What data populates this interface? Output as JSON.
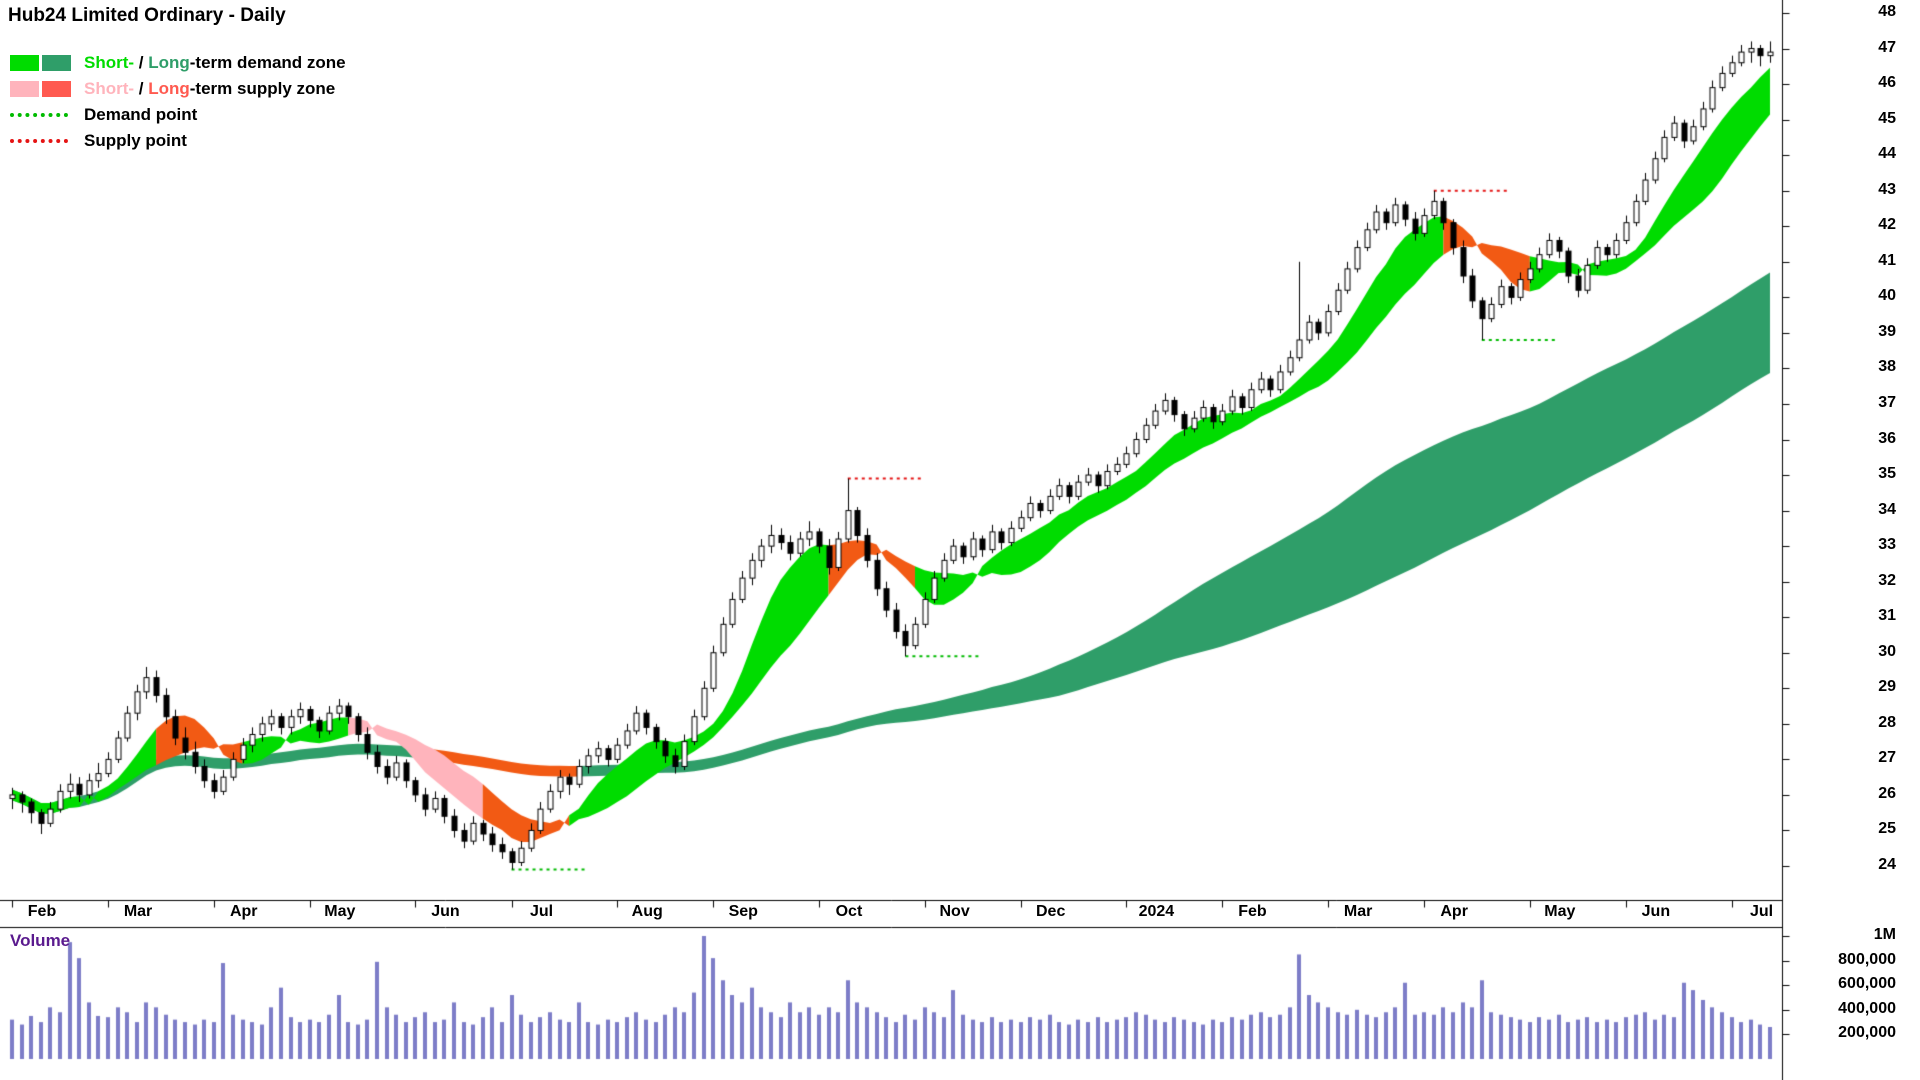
{
  "window": {
    "title": "Hub24 Limited Ordinary - Daily"
  },
  "legend": {
    "row1": [
      "Short-",
      " / ",
      "Long",
      "-term demand zone"
    ],
    "row2": [
      "Short-",
      " / ",
      "Long",
      "-term supply zone"
    ],
    "row3": "Demand point",
    "row4": "Supply point"
  },
  "volume_panel": {
    "label": "Volume"
  },
  "colors": {
    "short_demand": "#00dc00",
    "long_demand": "#2f9e69",
    "short_supply": "#ffb4bc",
    "long_supply": "#ff5a50",
    "supply_orange": "#f25a14",
    "demand_point": "#00bb00",
    "supply_point": "#e51414",
    "candle_up_fill": "#ffffff",
    "candle_down_fill": "#000000",
    "candle_stroke": "#000000",
    "volume_bar": "#7d7dc8",
    "volume_label": "#5a1a8e",
    "axis_line": "#000000",
    "text": "#000000",
    "background": "#ffffff"
  },
  "chart_data": {
    "type": "candlestick",
    "title": "Hub24 Limited Ordinary - Daily",
    "timeframe": "Daily",
    "y_axis": {
      "min": 24,
      "max": 48,
      "tick_interval": 1
    },
    "x_ticks": {
      "indices": [
        0,
        10,
        21,
        31,
        42,
        52,
        63,
        73,
        84,
        95,
        105,
        116,
        126,
        137,
        147,
        158,
        168,
        179
      ],
      "labels": [
        "Feb",
        "Mar",
        "Apr",
        "May",
        "Jun",
        "Jul",
        "Aug",
        "Sep",
        "Oct",
        "Nov",
        "Dec",
        "2024",
        "Feb",
        "Mar",
        "Apr",
        "May",
        "Jun",
        "Jul"
      ]
    },
    "candles": [
      [
        25.9,
        26.2,
        25.6,
        26.0
      ],
      [
        26.0,
        26.1,
        25.5,
        25.8
      ],
      [
        25.8,
        25.9,
        25.2,
        25.5
      ],
      [
        25.5,
        25.6,
        24.9,
        25.2
      ],
      [
        25.2,
        25.8,
        25.1,
        25.6
      ],
      [
        25.6,
        26.3,
        25.5,
        26.1
      ],
      [
        26.1,
        26.6,
        25.9,
        26.3
      ],
      [
        26.3,
        26.5,
        25.8,
        26.0
      ],
      [
        26.0,
        26.6,
        25.9,
        26.4
      ],
      [
        26.4,
        26.9,
        26.2,
        26.6
      ],
      [
        26.6,
        27.2,
        26.5,
        27.0
      ],
      [
        27.0,
        27.8,
        26.9,
        27.6
      ],
      [
        27.6,
        28.5,
        27.5,
        28.3
      ],
      [
        28.3,
        29.1,
        28.1,
        28.9
      ],
      [
        28.9,
        29.6,
        28.7,
        29.3
      ],
      [
        29.3,
        29.5,
        28.6,
        28.8
      ],
      [
        28.8,
        29.0,
        28.0,
        28.2
      ],
      [
        28.2,
        28.4,
        27.4,
        27.6
      ],
      [
        27.6,
        27.9,
        27.0,
        27.2
      ],
      [
        27.2,
        27.5,
        26.6,
        26.8
      ],
      [
        26.8,
        27.0,
        26.2,
        26.4
      ],
      [
        26.4,
        26.6,
        25.9,
        26.1
      ],
      [
        26.1,
        26.7,
        26.0,
        26.5
      ],
      [
        26.5,
        27.2,
        26.4,
        27.0
      ],
      [
        27.0,
        27.6,
        26.9,
        27.4
      ],
      [
        27.4,
        27.9,
        27.2,
        27.7
      ],
      [
        27.7,
        28.2,
        27.5,
        28.0
      ],
      [
        28.0,
        28.4,
        27.8,
        28.2
      ],
      [
        28.2,
        28.3,
        27.7,
        27.9
      ],
      [
        27.9,
        28.4,
        27.7,
        28.2
      ],
      [
        28.2,
        28.6,
        28.0,
        28.4
      ],
      [
        28.4,
        28.5,
        27.9,
        28.1
      ],
      [
        28.1,
        28.2,
        27.6,
        27.8
      ],
      [
        27.8,
        28.5,
        27.7,
        28.3
      ],
      [
        28.3,
        28.7,
        28.1,
        28.5
      ],
      [
        28.5,
        28.6,
        28.0,
        28.2
      ],
      [
        28.2,
        28.3,
        27.5,
        27.7
      ],
      [
        27.7,
        27.9,
        27.0,
        27.2
      ],
      [
        27.2,
        27.4,
        26.6,
        26.8
      ],
      [
        26.8,
        27.0,
        26.3,
        26.5
      ],
      [
        26.5,
        27.1,
        26.4,
        26.9
      ],
      [
        26.9,
        27.0,
        26.2,
        26.4
      ],
      [
        26.4,
        26.5,
        25.8,
        26.0
      ],
      [
        26.0,
        26.2,
        25.4,
        25.6
      ],
      [
        25.6,
        26.1,
        25.5,
        25.9
      ],
      [
        25.9,
        26.0,
        25.2,
        25.4
      ],
      [
        25.4,
        25.6,
        24.8,
        25.0
      ],
      [
        25.0,
        25.2,
        24.5,
        24.7
      ],
      [
        24.7,
        25.4,
        24.6,
        25.2
      ],
      [
        25.2,
        25.3,
        24.7,
        24.9
      ],
      [
        24.9,
        25.1,
        24.4,
        24.6
      ],
      [
        24.6,
        24.8,
        24.2,
        24.4
      ],
      [
        24.4,
        24.5,
        23.9,
        24.1
      ],
      [
        24.1,
        24.7,
        24.0,
        24.5
      ],
      [
        24.5,
        25.2,
        24.4,
        25.0
      ],
      [
        25.0,
        25.8,
        24.9,
        25.6
      ],
      [
        25.6,
        26.3,
        25.5,
        26.1
      ],
      [
        26.1,
        26.7,
        25.9,
        26.5
      ],
      [
        26.5,
        26.6,
        26.0,
        26.3
      ],
      [
        26.3,
        27.0,
        26.2,
        26.8
      ],
      [
        26.8,
        27.3,
        26.6,
        27.1
      ],
      [
        27.1,
        27.5,
        26.9,
        27.3
      ],
      [
        27.3,
        27.4,
        26.8,
        27.0
      ],
      [
        27.0,
        27.6,
        26.9,
        27.4
      ],
      [
        27.4,
        28.0,
        27.3,
        27.8
      ],
      [
        27.8,
        28.5,
        27.7,
        28.3
      ],
      [
        28.3,
        28.4,
        27.7,
        27.9
      ],
      [
        27.9,
        28.0,
        27.3,
        27.5
      ],
      [
        27.5,
        27.6,
        26.9,
        27.1
      ],
      [
        27.1,
        27.3,
        26.6,
        26.8
      ],
      [
        26.8,
        27.7,
        26.7,
        27.5
      ],
      [
        27.5,
        28.4,
        27.4,
        28.2
      ],
      [
        28.2,
        29.2,
        28.1,
        29.0
      ],
      [
        29.0,
        30.2,
        28.9,
        30.0
      ],
      [
        30.0,
        31.0,
        29.9,
        30.8
      ],
      [
        30.8,
        31.7,
        30.7,
        31.5
      ],
      [
        31.5,
        32.3,
        31.4,
        32.1
      ],
      [
        32.1,
        32.8,
        31.9,
        32.6
      ],
      [
        32.6,
        33.2,
        32.4,
        33.0
      ],
      [
        33.0,
        33.6,
        32.8,
        33.3
      ],
      [
        33.3,
        33.5,
        32.9,
        33.1
      ],
      [
        33.1,
        33.3,
        32.6,
        32.8
      ],
      [
        32.8,
        33.4,
        32.7,
        33.2
      ],
      [
        33.2,
        33.7,
        33.0,
        33.4
      ],
      [
        33.4,
        33.5,
        32.8,
        33.0
      ],
      [
        33.0,
        33.2,
        32.2,
        32.4
      ],
      [
        32.4,
        33.4,
        32.3,
        33.2
      ],
      [
        33.2,
        34.9,
        33.1,
        34.0
      ],
      [
        34.0,
        34.1,
        33.1,
        33.3
      ],
      [
        33.3,
        33.5,
        32.4,
        32.6
      ],
      [
        32.6,
        32.8,
        31.6,
        31.8
      ],
      [
        31.8,
        32.0,
        31.0,
        31.2
      ],
      [
        31.2,
        31.4,
        30.4,
        30.6
      ],
      [
        30.6,
        30.8,
        29.9,
        30.2
      ],
      [
        30.2,
        31.0,
        30.1,
        30.8
      ],
      [
        30.8,
        31.7,
        30.7,
        31.5
      ],
      [
        31.5,
        32.3,
        31.4,
        32.1
      ],
      [
        32.1,
        32.8,
        32.0,
        32.6
      ],
      [
        32.6,
        33.2,
        32.5,
        33.0
      ],
      [
        33.0,
        33.1,
        32.5,
        32.7
      ],
      [
        32.7,
        33.4,
        32.6,
        33.2
      ],
      [
        33.2,
        33.3,
        32.7,
        32.9
      ],
      [
        32.9,
        33.6,
        32.8,
        33.4
      ],
      [
        33.4,
        33.5,
        32.9,
        33.1
      ],
      [
        33.1,
        33.7,
        33.0,
        33.5
      ],
      [
        33.5,
        34.0,
        33.4,
        33.8
      ],
      [
        33.8,
        34.4,
        33.7,
        34.2
      ],
      [
        34.2,
        34.3,
        33.8,
        34.0
      ],
      [
        34.0,
        34.6,
        33.9,
        34.4
      ],
      [
        34.4,
        34.9,
        34.3,
        34.7
      ],
      [
        34.7,
        34.8,
        34.2,
        34.4
      ],
      [
        34.4,
        35.0,
        34.3,
        34.8
      ],
      [
        34.8,
        35.2,
        34.7,
        35.0
      ],
      [
        35.0,
        35.1,
        34.5,
        34.7
      ],
      [
        34.7,
        35.3,
        34.6,
        35.1
      ],
      [
        35.1,
        35.5,
        35.0,
        35.3
      ],
      [
        35.3,
        35.8,
        35.2,
        35.6
      ],
      [
        35.6,
        36.2,
        35.5,
        36.0
      ],
      [
        36.0,
        36.6,
        35.9,
        36.4
      ],
      [
        36.4,
        37.0,
        36.3,
        36.8
      ],
      [
        36.8,
        37.3,
        36.7,
        37.1
      ],
      [
        37.1,
        37.2,
        36.5,
        36.7
      ],
      [
        36.7,
        36.8,
        36.1,
        36.3
      ],
      [
        36.3,
        36.8,
        36.2,
        36.6
      ],
      [
        36.6,
        37.1,
        36.5,
        36.9
      ],
      [
        36.9,
        37.0,
        36.3,
        36.5
      ],
      [
        36.5,
        37.0,
        36.4,
        36.8
      ],
      [
        36.8,
        37.4,
        36.7,
        37.2
      ],
      [
        37.2,
        37.3,
        36.7,
        36.9
      ],
      [
        36.9,
        37.6,
        36.8,
        37.4
      ],
      [
        37.4,
        37.9,
        37.3,
        37.7
      ],
      [
        37.7,
        37.8,
        37.2,
        37.4
      ],
      [
        37.4,
        38.1,
        37.3,
        37.9
      ],
      [
        37.9,
        38.5,
        37.8,
        38.3
      ],
      [
        38.3,
        41.0,
        38.2,
        38.8
      ],
      [
        38.8,
        39.5,
        38.7,
        39.3
      ],
      [
        39.3,
        39.4,
        38.8,
        39.0
      ],
      [
        39.0,
        39.8,
        38.9,
        39.6
      ],
      [
        39.6,
        40.4,
        39.5,
        40.2
      ],
      [
        40.2,
        41.0,
        40.1,
        40.8
      ],
      [
        40.8,
        41.6,
        40.7,
        41.4
      ],
      [
        41.4,
        42.1,
        41.3,
        41.9
      ],
      [
        41.9,
        42.6,
        41.8,
        42.4
      ],
      [
        42.4,
        42.5,
        41.9,
        42.1
      ],
      [
        42.1,
        42.8,
        42.0,
        42.6
      ],
      [
        42.6,
        42.7,
        42.0,
        42.2
      ],
      [
        42.2,
        42.4,
        41.6,
        41.8
      ],
      [
        41.8,
        42.5,
        41.7,
        42.3
      ],
      [
        42.3,
        43.0,
        42.2,
        42.7
      ],
      [
        42.7,
        42.8,
        41.9,
        42.1
      ],
      [
        42.1,
        42.2,
        41.2,
        41.4
      ],
      [
        41.4,
        41.6,
        40.4,
        40.6
      ],
      [
        40.6,
        40.8,
        39.7,
        39.9
      ],
      [
        39.9,
        40.0,
        38.8,
        39.4
      ],
      [
        39.4,
        40.0,
        39.3,
        39.8
      ],
      [
        39.8,
        40.5,
        39.7,
        40.3
      ],
      [
        40.3,
        40.4,
        39.8,
        40.0
      ],
      [
        40.0,
        40.7,
        39.9,
        40.5
      ],
      [
        40.5,
        41.0,
        40.4,
        40.8
      ],
      [
        40.8,
        41.4,
        40.7,
        41.2
      ],
      [
        41.2,
        41.8,
        41.1,
        41.6
      ],
      [
        41.6,
        41.7,
        41.1,
        41.3
      ],
      [
        41.3,
        41.4,
        40.4,
        40.6
      ],
      [
        40.6,
        40.8,
        40.0,
        40.2
      ],
      [
        40.2,
        41.1,
        40.1,
        40.9
      ],
      [
        40.9,
        41.6,
        40.8,
        41.4
      ],
      [
        41.4,
        41.5,
        41.0,
        41.2
      ],
      [
        41.2,
        41.8,
        41.1,
        41.6
      ],
      [
        41.6,
        42.3,
        41.5,
        42.1
      ],
      [
        42.1,
        42.9,
        42.0,
        42.7
      ],
      [
        42.7,
        43.5,
        42.6,
        43.3
      ],
      [
        43.3,
        44.1,
        43.2,
        43.9
      ],
      [
        43.9,
        44.7,
        43.8,
        44.5
      ],
      [
        44.5,
        45.1,
        44.4,
        44.9
      ],
      [
        44.9,
        45.0,
        44.2,
        44.4
      ],
      [
        44.4,
        45.0,
        44.3,
        44.8
      ],
      [
        44.8,
        45.5,
        44.7,
        45.3
      ],
      [
        45.3,
        46.1,
        45.2,
        45.9
      ],
      [
        45.9,
        46.5,
        45.8,
        46.3
      ],
      [
        46.3,
        46.8,
        46.2,
        46.6
      ],
      [
        46.6,
        47.1,
        46.5,
        46.9
      ],
      [
        46.9,
        47.2,
        46.6,
        47.0
      ],
      [
        47.0,
        47.1,
        46.5,
        46.8
      ],
      [
        46.8,
        47.2,
        46.6,
        46.9
      ]
    ],
    "bands": {
      "short": {
        "fast_window": 8,
        "slow_window": 16,
        "default_color_key": "short_demand",
        "overrides": [
          {
            "from": 15,
            "to": 23,
            "color_key": "supply_orange"
          },
          {
            "from": 35,
            "to": 48,
            "color_key": "short_supply"
          },
          {
            "from": 49,
            "to": 57,
            "color_key": "supply_orange"
          },
          {
            "from": 85,
            "to": 93,
            "color_key": "supply_orange"
          },
          {
            "from": 149,
            "to": 157,
            "color_key": "supply_orange"
          }
        ]
      },
      "long": {
        "fast_window": 70,
        "slow_window": 110,
        "default_color_key": "long_demand",
        "overrides": [
          {
            "from": 42,
            "to": 58,
            "color_key": "supply_orange"
          }
        ]
      }
    },
    "demand_points": [
      {
        "from": 52,
        "to": 60,
        "price": 23.9
      },
      {
        "from": 93,
        "to": 101,
        "price": 29.9
      },
      {
        "from": 153,
        "to": 161,
        "price": 38.8
      }
    ],
    "supply_points": [
      {
        "from": 87,
        "to": 95,
        "price": 34.9
      },
      {
        "from": 148,
        "to": 156,
        "price": 43.0
      }
    ],
    "volume": {
      "unit_scale": 1000,
      "values_k": [
        320,
        280,
        350,
        300,
        420,
        380,
        950,
        820,
        460,
        350,
        340,
        420,
        380,
        300,
        460,
        420,
        360,
        320,
        300,
        280,
        320,
        300,
        780,
        360,
        320,
        300,
        280,
        420,
        580,
        340,
        300,
        320,
        300,
        360,
        520,
        300,
        280,
        320,
        790,
        420,
        360,
        300,
        340,
        380,
        300,
        320,
        460,
        300,
        280,
        340,
        420,
        300,
        520,
        360,
        300,
        340,
        380,
        320,
        300,
        460,
        300,
        280,
        320,
        300,
        340,
        380,
        320,
        300,
        360,
        420,
        380,
        540,
        1000,
        820,
        640,
        520,
        460,
        580,
        420,
        380,
        340,
        460,
        380,
        420,
        360,
        420,
        380,
        640,
        460,
        420,
        380,
        340,
        300,
        360,
        320,
        420,
        380,
        340,
        560,
        360,
        320,
        300,
        340,
        300,
        320,
        300,
        340,
        320,
        360,
        300,
        280,
        320,
        300,
        340,
        300,
        320,
        340,
        380,
        360,
        320,
        300,
        340,
        320,
        300,
        280,
        320,
        300,
        340,
        320,
        360,
        380,
        340,
        360,
        420,
        850,
        520,
        460,
        420,
        380,
        360,
        400,
        360,
        340,
        380,
        420,
        620,
        360,
        380,
        360,
        420,
        380,
        460,
        420,
        640,
        380,
        360,
        340,
        320,
        300,
        340,
        320,
        360,
        300,
        320,
        340,
        300,
        320,
        300,
        340,
        360,
        380,
        320,
        360,
        340,
        620,
        560,
        480,
        420,
        380,
        340,
        300,
        320,
        280,
        260
      ],
      "ticks": [
        {
          "label": "1M",
          "value": 1000000
        },
        {
          "label": "800,000",
          "value": 800000
        },
        {
          "label": "600,000",
          "value": 600000
        },
        {
          "label": "400,000",
          "value": 400000
        },
        {
          "label": "200,000",
          "value": 200000
        }
      ]
    }
  }
}
